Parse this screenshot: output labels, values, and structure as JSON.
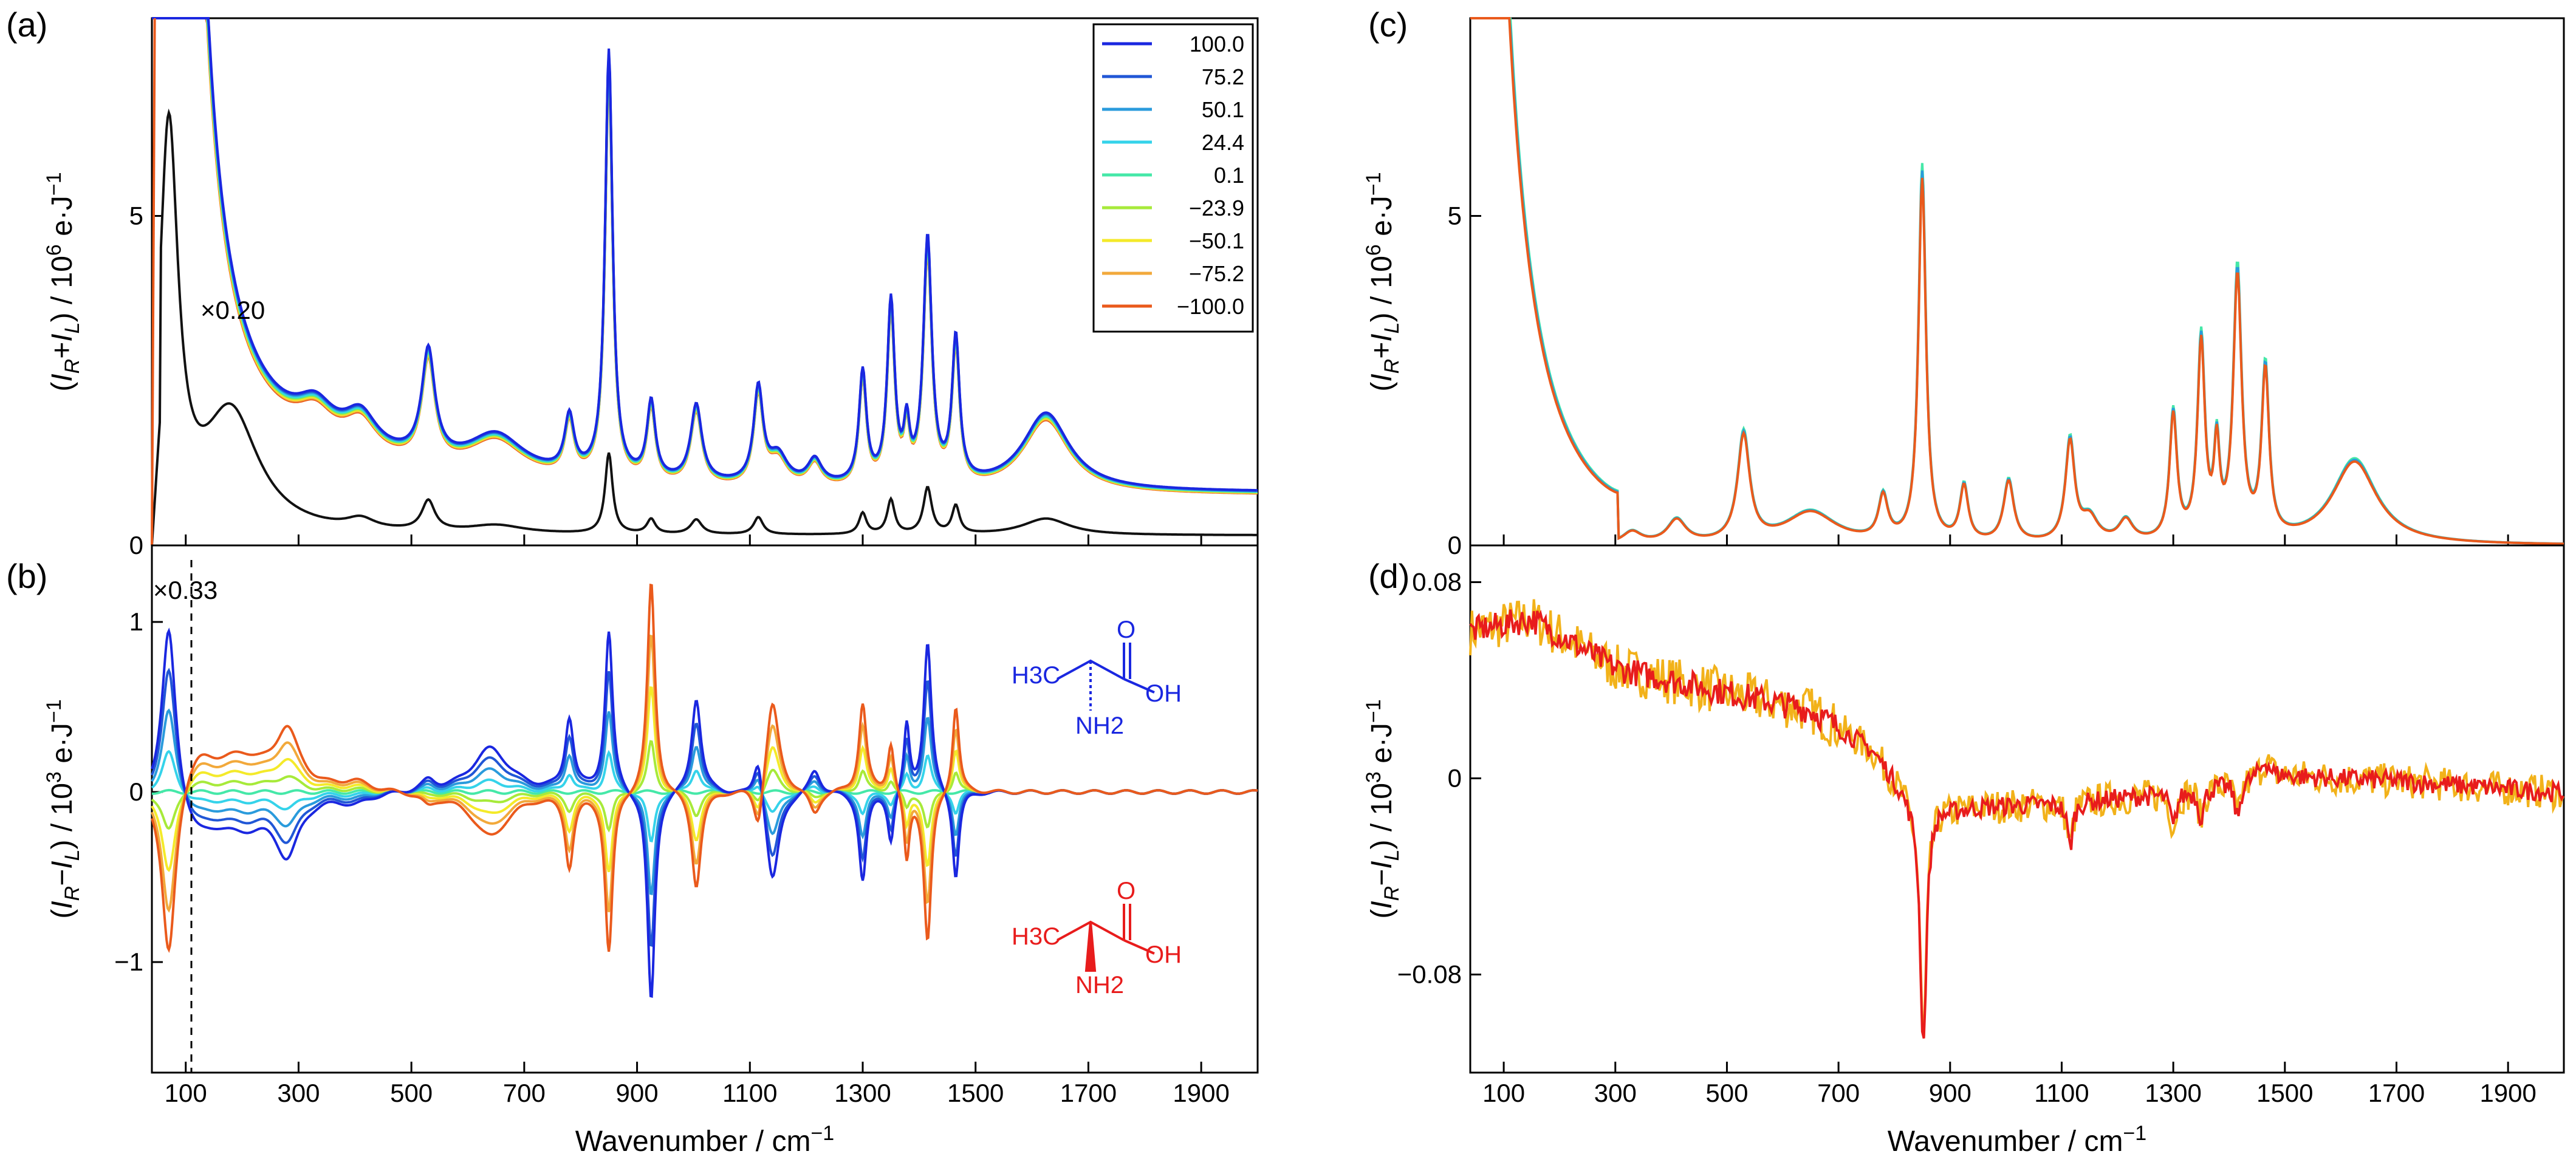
{
  "figure": {
    "panel_labels": [
      "(a)",
      "(b)",
      "(c)",
      "(d)"
    ],
    "xlabel": "Wavenumber / cm",
    "xlabel_exp": "−1"
  },
  "chart_data": [
    {
      "id": "a",
      "type": "line",
      "title": "(a)",
      "xlabel": "Wavenumber / cm−1",
      "ylabel": "(IR+IL) / 10^6 e·J−1",
      "xlim": [
        40,
        2000
      ],
      "ylim": [
        0,
        8
      ],
      "xticks": [
        100,
        300,
        500,
        700,
        900,
        1100,
        1300,
        1500,
        1700,
        1900
      ],
      "yticks": [
        0,
        5
      ],
      "ytick_labels": [
        "0",
        "5"
      ],
      "annotation": "×0.20",
      "legend": {
        "placement": "top-right",
        "entries": [
          "100.0",
          "75.2",
          "50.1",
          "24.4",
          "0.1",
          "−23.9",
          "−50.1",
          "−75.2",
          "−100.0"
        ],
        "colors": [
          "#1a27e0",
          "#2157d6",
          "#2a9bdc",
          "#35d3ea",
          "#45e8a8",
          "#a7ea3a",
          "#f4ea2a",
          "#f2a93b",
          "#ea5a1c"
        ]
      },
      "baseline": 0.75,
      "scale_step": 0.06,
      "peaks": [
        [
          330,
          0.45,
          40
        ],
        [
          410,
          0.5,
          35
        ],
        [
          530,
          1.55,
          14
        ],
        [
          650,
          0.55,
          60
        ],
        [
          780,
          0.8,
          10
        ],
        [
          850,
          6.1,
          8
        ],
        [
          925,
          1.1,
          9
        ],
        [
          1005,
          1.1,
          12
        ],
        [
          1115,
          1.35,
          10
        ],
        [
          1150,
          0.4,
          20
        ],
        [
          1215,
          0.35,
          15
        ],
        [
          1300,
          1.6,
          8
        ],
        [
          1350,
          2.6,
          8
        ],
        [
          1378,
          0.75,
          6
        ],
        [
          1415,
          3.5,
          9
        ],
        [
          1465,
          2.05,
          8
        ],
        [
          1625,
          1.1,
          50
        ]
      ],
      "raman_black": {
        "multiplier": "×0.20",
        "peaks": [
          [
            70,
            6.0,
            20
          ],
          [
            180,
            1.8,
            60
          ],
          [
            410,
            0.15,
            30
          ],
          [
            530,
            0.45,
            14
          ],
          [
            650,
            0.12,
            60
          ],
          [
            850,
            1.22,
            8
          ],
          [
            925,
            0.22,
            9
          ],
          [
            1005,
            0.22,
            12
          ],
          [
            1115,
            0.26,
            10
          ],
          [
            1300,
            0.32,
            8
          ],
          [
            1350,
            0.52,
            8
          ],
          [
            1415,
            0.7,
            9
          ],
          [
            1465,
            0.42,
            8
          ],
          [
            1625,
            0.25,
            50
          ]
        ]
      }
    },
    {
      "id": "b",
      "type": "line",
      "title": "(b)",
      "xlabel": "Wavenumber / cm−1",
      "ylabel": "(IR−IL) / 10^3 e·J−1",
      "xlim": [
        40,
        2000
      ],
      "ylim": [
        -1.65,
        1.45
      ],
      "xticks": [
        100,
        300,
        500,
        700,
        900,
        1100,
        1300,
        1500,
        1700,
        1900
      ],
      "yticks": [
        -1,
        0,
        1
      ],
      "ytick_labels": [
        "−1",
        "0",
        "1"
      ],
      "annotation": "×0.33",
      "dashed_line_x": 110,
      "series_values": [
        100.0,
        75.2,
        50.1,
        24.4,
        0.1,
        -23.9,
        -50.1,
        -75.2,
        -100.0
      ],
      "roa_peaks_for_100": [
        [
          70,
          1.05,
          15
        ],
        [
          120,
          -0.2,
          40
        ],
        [
          200,
          -0.18,
          60
        ],
        [
          280,
          -0.32,
          25
        ],
        [
          400,
          -0.05,
          30
        ],
        [
          530,
          0.06,
          15
        ],
        [
          640,
          0.26,
          40
        ],
        [
          780,
          0.42,
          9
        ],
        [
          850,
          0.94,
          8
        ],
        [
          925,
          -1.25,
          8
        ],
        [
          1005,
          0.56,
          10
        ],
        [
          1115,
          0.28,
          10
        ],
        [
          1140,
          -0.55,
          14
        ],
        [
          1215,
          0.14,
          12
        ],
        [
          1300,
          -0.52,
          8
        ],
        [
          1350,
          -0.3,
          7
        ],
        [
          1378,
          0.4,
          6
        ],
        [
          1415,
          0.88,
          8
        ],
        [
          1465,
          -0.52,
          7
        ]
      ],
      "molecules": [
        {
          "name": "D-alanine",
          "color": "#1a27e0",
          "labels": {
            "ch3": "H3C",
            "o": "O",
            "oh": "OH",
            "nh2": "NH2"
          }
        },
        {
          "name": "L-alanine",
          "color": "#e81c1c",
          "labels": {
            "ch3": "H3C",
            "o": "O",
            "oh": "OH",
            "nh2": "NH2"
          }
        }
      ]
    },
    {
      "id": "c",
      "type": "line",
      "title": "(c)",
      "xlabel": "Wavenumber / cm−1",
      "ylabel": "(IR+IL) / 10^6 e·J−1",
      "xlim": [
        40,
        2000
      ],
      "ylim": [
        0,
        8
      ],
      "xticks": [
        100,
        300,
        500,
        700,
        900,
        1100,
        1300,
        1500,
        1700,
        1900
      ],
      "yticks": [
        0,
        5
      ],
      "ytick_labels": [
        "0",
        "5"
      ],
      "series_colors": [
        "#45e8a8",
        "#2a9bdc",
        "#ea5a1c"
      ],
      "peaks": [
        [
          330,
          0.18,
          20
        ],
        [
          410,
          0.35,
          20
        ],
        [
          530,
          1.6,
          13
        ],
        [
          650,
          0.48,
          55
        ],
        [
          780,
          0.65,
          10
        ],
        [
          850,
          5.5,
          8
        ],
        [
          925,
          0.82,
          9
        ],
        [
          1005,
          0.92,
          11
        ],
        [
          1115,
          1.5,
          10
        ],
        [
          1150,
          0.35,
          18
        ],
        [
          1215,
          0.32,
          15
        ],
        [
          1300,
          1.88,
          8
        ],
        [
          1350,
          2.95,
          8
        ],
        [
          1378,
          1.3,
          6
        ],
        [
          1415,
          3.95,
          9
        ],
        [
          1465,
          2.5,
          8
        ],
        [
          1625,
          1.25,
          48
        ]
      ]
    },
    {
      "id": "d",
      "type": "line",
      "title": "(d)",
      "xlabel": "Wavenumber / cm−1",
      "ylabel": "(IR−IL) / 10^3 e·J−1",
      "xlim": [
        40,
        2000
      ],
      "ylim": [
        -0.12,
        0.095
      ],
      "xticks": [
        100,
        300,
        500,
        700,
        900,
        1100,
        1300,
        1500,
        1700,
        1900
      ],
      "yticks": [
        -0.08,
        0,
        0.08
      ],
      "ytick_labels": [
        "−0.08",
        "0",
        "0.08"
      ],
      "series_colors": [
        "#f2b21a",
        "#e81c1c"
      ],
      "trend_points": [
        [
          40,
          0.06
        ],
        [
          150,
          0.065
        ],
        [
          300,
          0.045
        ],
        [
          500,
          0.035
        ],
        [
          650,
          0.028
        ],
        [
          760,
          0.012
        ],
        [
          830,
          -0.008
        ],
        [
          900,
          -0.012
        ],
        [
          1100,
          -0.01
        ],
        [
          1300,
          -0.006
        ],
        [
          1450,
          0.0
        ],
        [
          1500,
          0.001
        ],
        [
          1700,
          -0.001
        ],
        [
          2000,
          -0.006
        ]
      ],
      "dips": [
        [
          852,
          -0.1,
          7
        ],
        [
          1115,
          -0.018,
          6
        ],
        [
          1300,
          -0.014,
          6
        ],
        [
          1350,
          -0.012,
          6
        ],
        [
          1415,
          -0.015,
          6
        ],
        [
          1465,
          0.007,
          10
        ]
      ]
    }
  ]
}
